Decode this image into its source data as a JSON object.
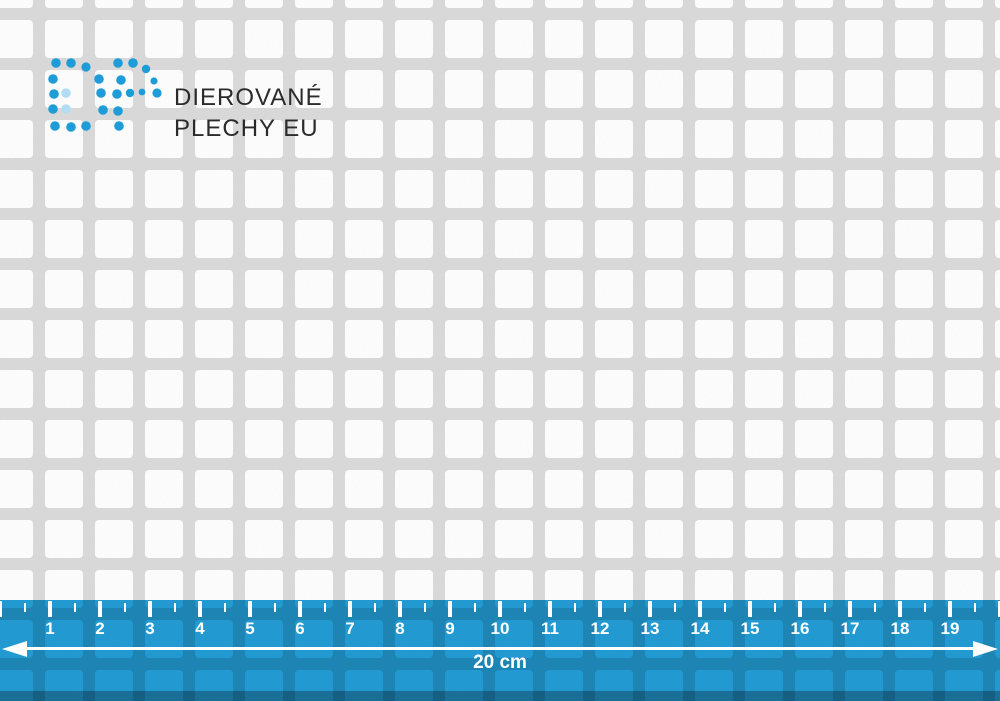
{
  "brand": {
    "logo_text_line1": "DIEROVANÉ",
    "logo_text_line2": "PLECHY EU",
    "logo_mark_icon": "dp-dot-monogram"
  },
  "sheet": {
    "description_icon": "perforated-sheet-square-holes"
  },
  "ruler": {
    "numbers": [
      "1",
      "2",
      "3",
      "4",
      "5",
      "6",
      "7",
      "8",
      "9",
      "10",
      "11",
      "12",
      "13",
      "14",
      "15",
      "16",
      "17",
      "18",
      "19"
    ],
    "length_label": "20 cm"
  },
  "colors": {
    "brand_blue": "#1e9cd7",
    "dot_light": "#b3dcf2",
    "text_dark": "#2b2b2b",
    "grid_bar": "#d9d9d9",
    "hole_white": "#fdfdfd",
    "ruler_blue": "#229cd4",
    "marking_white": "#ffffff"
  }
}
